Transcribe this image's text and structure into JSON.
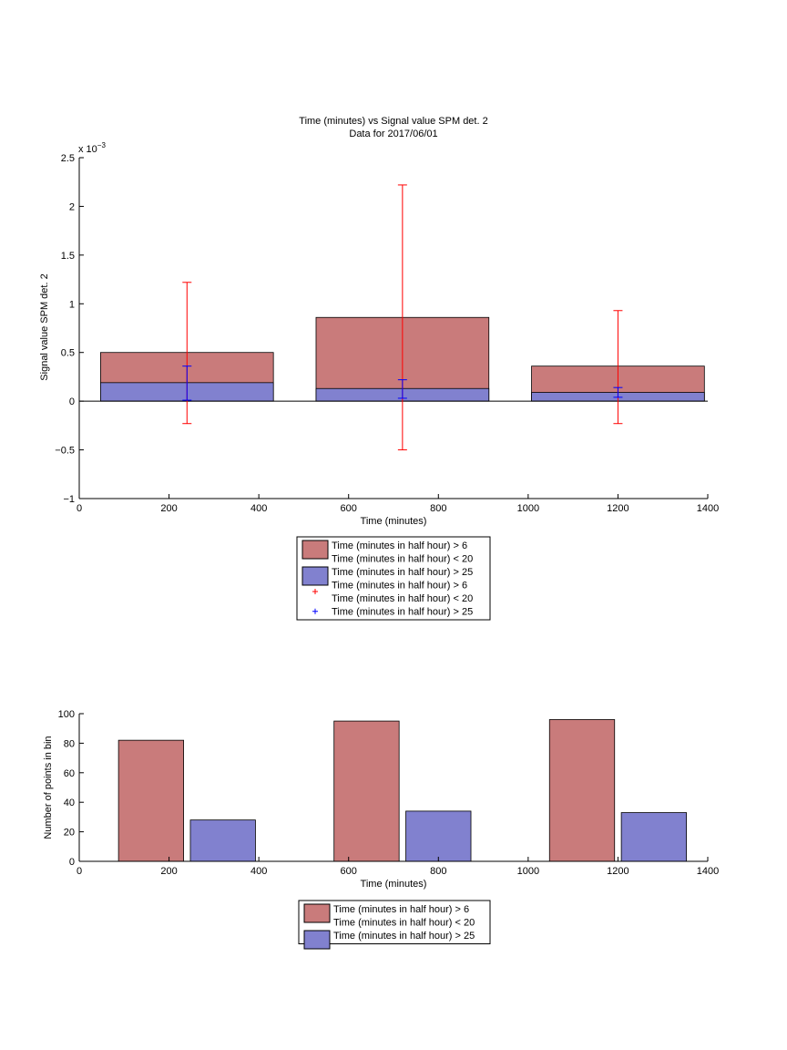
{
  "chart_data": [
    {
      "type": "bar",
      "title": "Time (minutes) vs Signal value SPM det. 2",
      "subtitle": "Data for 2017/06/01",
      "xlabel": "Time (minutes)",
      "ylabel": "Signal value SPM det. 2",
      "y_exponent_label": "x 10",
      "y_exponent_power": "−3",
      "xlim": [
        0,
        1400
      ],
      "ylim": [
        -1,
        2.5
      ],
      "y_scale_factor": 0.001,
      "xticks": [
        "0",
        "200",
        "400",
        "600",
        "800",
        "1000",
        "1200",
        "1400"
      ],
      "xtick_values": [
        0,
        200,
        400,
        600,
        800,
        1000,
        1200,
        1400
      ],
      "yticks": [
        "−1",
        "−0.5",
        "0",
        "0.5",
        "1",
        "1.5",
        "2",
        "2.5"
      ],
      "ytick_values": [
        -1,
        -0.5,
        0,
        0.5,
        1,
        1.5,
        2,
        2.5
      ],
      "bar_groups": [
        {
          "center": 240,
          "width": 385
        },
        {
          "center": 720,
          "width": 385
        },
        {
          "center": 1200,
          "width": 385
        }
      ],
      "series": [
        {
          "name": "Time (minutes in half hour) > 6\nTime (minutes in half hour) < 20",
          "color": "#c97b7b",
          "values": [
            0.5,
            0.86,
            0.36
          ],
          "errors": [
            [
              -0.23,
              1.22
            ],
            [
              -0.5,
              2.22
            ],
            [
              -0.23,
              0.93
            ]
          ],
          "error_color": "#ff0000"
        },
        {
          "name": "Time (minutes in half hour) > 25",
          "color": "#8181cf",
          "values": [
            0.19,
            0.13,
            0.09
          ],
          "errors": [
            [
              0.01,
              0.36
            ],
            [
              0.03,
              0.22
            ],
            [
              0.04,
              0.14
            ]
          ],
          "error_color": "#0000ff"
        }
      ],
      "legend": [
        {
          "type": "patch",
          "color": "#c97b7b",
          "lines": [
            "Time (minutes in half hour) > 6",
            "Time (minutes in half hour) < 20"
          ]
        },
        {
          "type": "patch",
          "color": "#8181cf",
          "lines": [
            "Time (minutes in half hour) > 25"
          ]
        },
        {
          "type": "marker",
          "color": "#ff0000",
          "lines": [
            "Time (minutes in half hour) > 6",
            "Time (minutes in half hour) < 20"
          ]
        },
        {
          "type": "marker",
          "color": "#0000ff",
          "lines": [
            "Time (minutes in half hour) > 25"
          ]
        }
      ],
      "grid": false
    },
    {
      "type": "bar",
      "xlabel": "Time (minutes)",
      "ylabel": "Number of points in bin",
      "xlim": [
        0,
        1400
      ],
      "ylim": [
        0,
        100
      ],
      "xticks": [
        "0",
        "200",
        "400",
        "600",
        "800",
        "1000",
        "1200",
        "1400"
      ],
      "xtick_values": [
        0,
        200,
        400,
        600,
        800,
        1000,
        1200,
        1400
      ],
      "yticks": [
        "0",
        "20",
        "40",
        "60",
        "80",
        "100"
      ],
      "ytick_values": [
        0,
        20,
        40,
        60,
        80,
        100
      ],
      "bars": [
        {
          "center": 160,
          "width": 145,
          "value": 82,
          "series": 0
        },
        {
          "center": 320,
          "width": 145,
          "value": 28,
          "series": 1
        },
        {
          "center": 640,
          "width": 145,
          "value": 95,
          "series": 0
        },
        {
          "center": 800,
          "width": 145,
          "value": 34,
          "series": 1
        },
        {
          "center": 1120,
          "width": 145,
          "value": 96,
          "series": 0
        },
        {
          "center": 1280,
          "width": 145,
          "value": 33,
          "series": 1
        }
      ],
      "series": [
        {
          "name": "Time (minutes in half hour) > 6\nTime (minutes in half hour) < 20",
          "color": "#c97b7b"
        },
        {
          "name": "Time (minutes in half hour) > 25",
          "color": "#8181cf"
        }
      ],
      "legend": [
        {
          "type": "patch",
          "color": "#c97b7b",
          "lines": [
            "Time (minutes in half hour) > 6",
            "Time (minutes in half hour) < 20"
          ]
        },
        {
          "type": "patch",
          "color": "#8181cf",
          "lines": [
            "Time (minutes in half hour) > 25"
          ]
        }
      ],
      "grid": false
    }
  ]
}
